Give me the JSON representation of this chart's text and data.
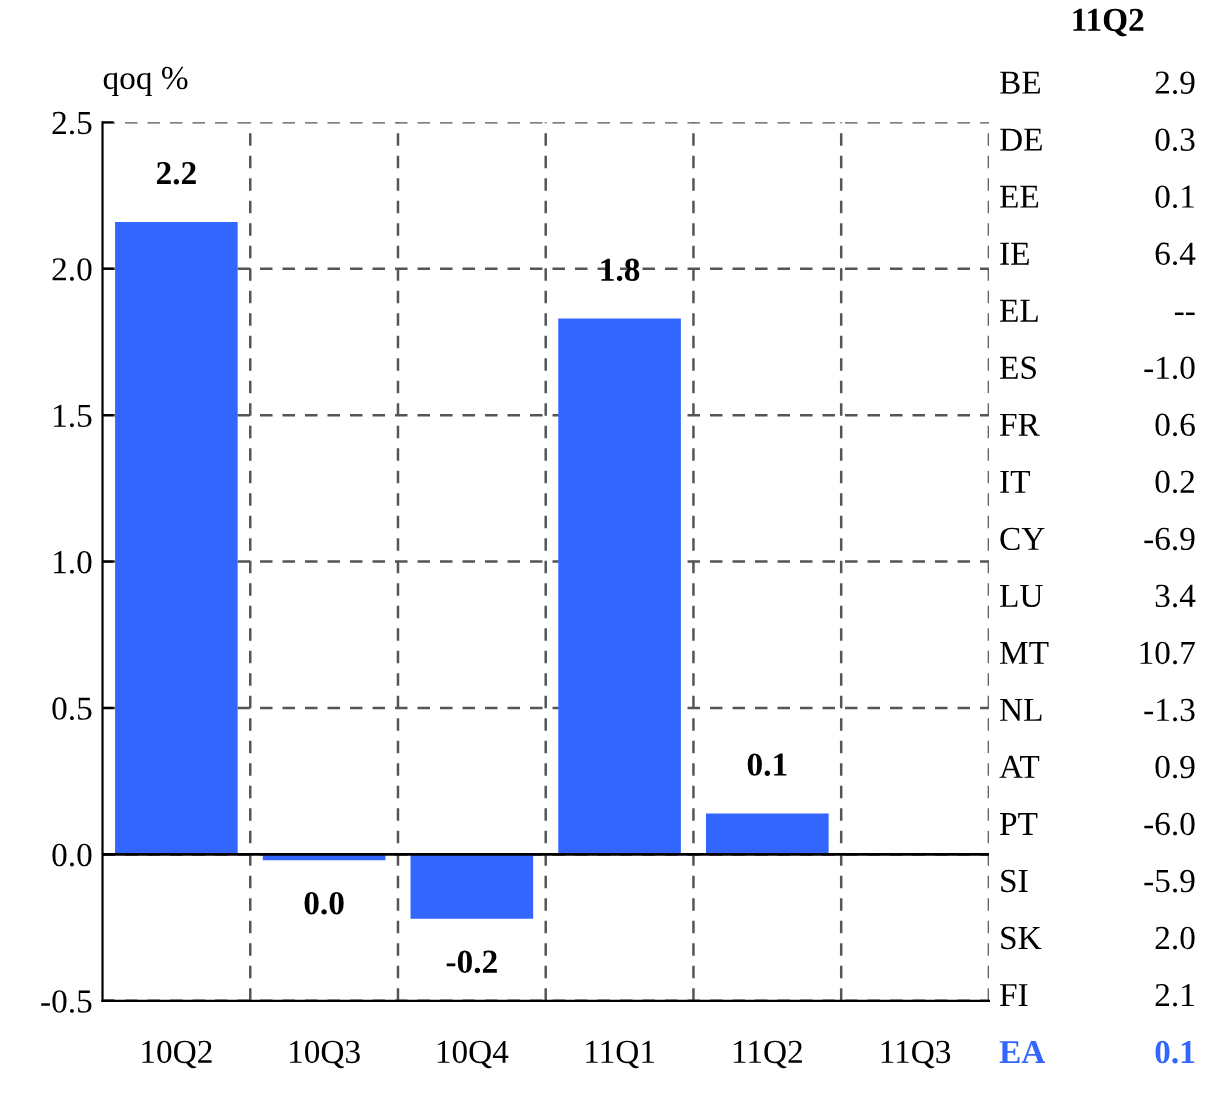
{
  "chart_data": [
    {
      "type": "bar",
      "ylabel": "qoq %",
      "categories": [
        "10Q2",
        "10Q3",
        "10Q4",
        "11Q1",
        "11Q2",
        "11Q3"
      ],
      "values": [
        2.16,
        -0.02,
        -0.22,
        1.83,
        0.14,
        null
      ],
      "value_labels": [
        "2.2",
        "0.0",
        "-0.2",
        "1.8",
        "0.1",
        null
      ],
      "color": "#3366ff",
      "ylim": [
        -0.5,
        2.5
      ],
      "yticks": [
        {
          "value": -0.5,
          "label": "-0.5"
        },
        {
          "value": 0.0,
          "label": "0.0"
        },
        {
          "value": 0.5,
          "label": "0.5"
        },
        {
          "value": 1.0,
          "label": "1.0"
        },
        {
          "value": 1.5,
          "label": "1.5"
        },
        {
          "value": 2.0,
          "label": "2.0"
        },
        {
          "value": 2.5,
          "label": "2.5"
        }
      ],
      "grid": true,
      "legend": false
    },
    {
      "type": "other",
      "title": "11Q2",
      "categories": [
        "BE",
        "DE",
        "EE",
        "IE",
        "EL",
        "ES",
        "FR",
        "IT",
        "CY",
        "LU",
        "MT",
        "NL",
        "AT",
        "PT",
        "SI",
        "SK",
        "FI",
        "EA"
      ],
      "value_labels": [
        "2.9",
        "0.3",
        "0.1",
        "6.4",
        "--",
        "-1.0",
        "0.6",
        "0.2",
        "-6.9",
        "3.4",
        "10.7",
        "-1.3",
        "0.9",
        "-6.0",
        "-5.9",
        "2.0",
        "2.1",
        "0.1"
      ],
      "colors": [
        "#000000",
        "#000000",
        "#000000",
        "#000000",
        "#000000",
        "#000000",
        "#000000",
        "#000000",
        "#000000",
        "#000000",
        "#000000",
        "#000000",
        "#000000",
        "#000000",
        "#000000",
        "#000000",
        "#000000",
        "#3366ff"
      ]
    }
  ]
}
